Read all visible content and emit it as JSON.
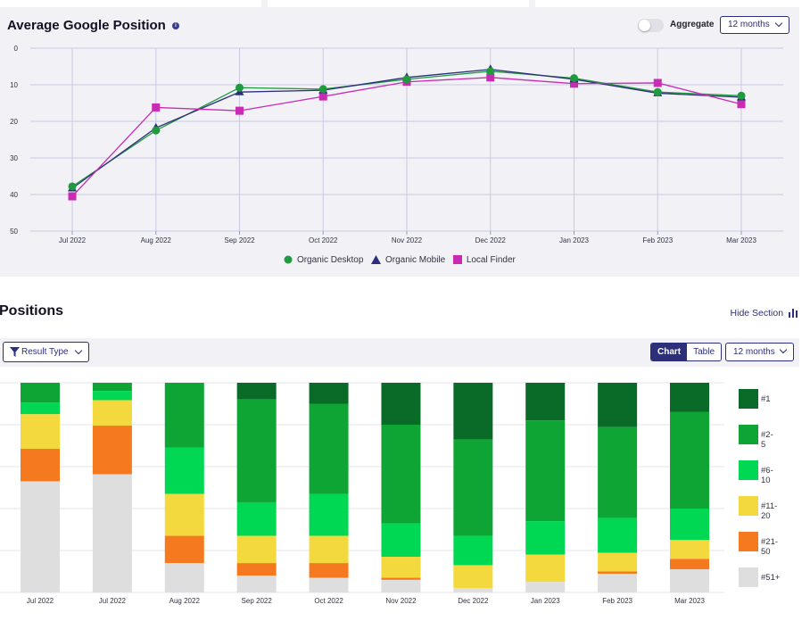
{
  "top_chart": {
    "title": "Average Google Position",
    "info_icon": "info-icon",
    "aggregate_label": "Aggregate",
    "aggregate_on": false,
    "period_dropdown": "12 months"
  },
  "positions": {
    "title": "Positions",
    "hide_section_label": "Hide Section",
    "result_type_label": "Result Type",
    "view_chart_label": "Chart",
    "view_table_label": "Table",
    "active_view": "Chart",
    "period_dropdown": "12 months"
  },
  "colors": {
    "organic_desktop": "#1f9a3f",
    "organic_mobile": "#2c2f7a",
    "local_finder": "#c92bb3",
    "pos_1": "#0a6b28",
    "pos_2_5": "#0ea535",
    "pos_6_10": "#00d854",
    "pos_11_20": "#f3d93e",
    "pos_21_50": "#f57a1f",
    "pos_51_plus": "#dedede"
  },
  "chart_data": [
    {
      "type": "line",
      "x": [
        "Jul 2022",
        "Aug 2022",
        "Sep 2022",
        "Oct 2022",
        "Nov 2022",
        "Dec 2022",
        "Jan 2023",
        "Feb 2023",
        "Mar 2023"
      ],
      "ylim": [
        50,
        0
      ],
      "yticks": [
        "0",
        "10",
        "20",
        "30",
        "40",
        "50"
      ],
      "grid": true,
      "legend_placement": "bottom",
      "series": [
        {
          "name": "Organic Desktop",
          "marker": "circle",
          "values": [
            37.8,
            22.5,
            10.8,
            11.2,
            8.5,
            6.3,
            8.2,
            12.0,
            13.0
          ]
        },
        {
          "name": "Organic Mobile",
          "marker": "triangle",
          "values": [
            38.3,
            21.8,
            12.0,
            11.5,
            8.0,
            5.8,
            8.5,
            12.3,
            13.4
          ]
        },
        {
          "name": "Local Finder",
          "marker": "square",
          "values": [
            40.5,
            16.2,
            17.1,
            13.2,
            9.2,
            8.0,
            9.7,
            9.5,
            15.3
          ]
        }
      ]
    },
    {
      "type": "bar",
      "stacked": true,
      "categories": [
        "Jul 2022",
        "Jul 2022",
        "Aug 2022",
        "Sep 2022",
        "Oct 2022",
        "Nov 2022",
        "Dec 2022",
        "Jan 2023",
        "Feb 2023",
        "Mar 2023"
      ],
      "unit": "percent",
      "legend_placement": "right",
      "series": [
        {
          "name": "#1",
          "values": [
            0,
            0,
            0,
            8,
            10,
            20,
            27,
            18,
            19,
            14
          ]
        },
        {
          "name": "#2-5",
          "values": [
            9.5,
            3.5,
            31,
            49,
            43,
            47,
            46,
            48,
            39,
            46
          ]
        },
        {
          "name": "#6-10",
          "values": [
            5.5,
            4,
            22,
            16,
            20,
            16,
            14,
            16,
            15,
            15
          ]
        },
        {
          "name": "#11-20",
          "values": [
            16.5,
            11,
            20,
            13,
            13,
            10,
            11,
            13,
            8,
            9
          ]
        },
        {
          "name": "#21-50",
          "values": [
            15.5,
            21,
            13,
            6,
            7,
            1,
            0,
            0,
            1,
            5
          ]
        },
        {
          "name": "#51+",
          "values": [
            53,
            51,
            14,
            8,
            7,
            6,
            2,
            5,
            8,
            11
          ]
        }
      ]
    }
  ]
}
